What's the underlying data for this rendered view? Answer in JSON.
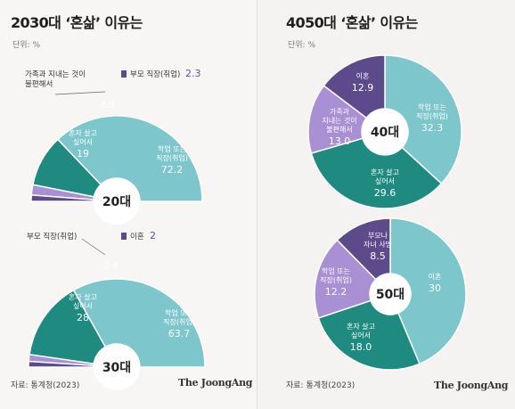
{
  "left": {
    "title": "2030대 ‘혼삶’ 이유는",
    "unit": "단위: %",
    "source": "자료: 통계청(2023)",
    "brand": "The JoongAng"
  },
  "right": {
    "title": "4050대 ‘혼삶’ 이유는",
    "unit": "단위: %",
    "source": "자료: 통계청(2023)",
    "brand": "The JoongAng"
  },
  "colors": {
    "light_teal": "#7cc6cc",
    "dark_teal": "#1e8a80",
    "lavender": "#a98fd4",
    "dark_purple": "#5c4a8a",
    "callout_value": "#6a4f9a"
  },
  "chart_data": [
    {
      "type": "pie",
      "layout": "semicircle",
      "center_label": "20대",
      "slices": [
        {
          "label": "학업 또는\n직장(취업)",
          "value": 72.2,
          "value_text": "72.2",
          "color": "#7cc6cc"
        },
        {
          "label": "혼자 살고\n싶어서",
          "value": 19,
          "value_text": "19",
          "color": "#1e8a80"
        },
        {
          "label": "가족과 지내는 것이\n불편해서",
          "value": 3.8,
          "value_text": "3.8",
          "color": "#a98fd4",
          "callout": true
        },
        {
          "label": "부모 직장(취업)",
          "value": 2.3,
          "value_text": "2.3",
          "color": "#5c4a8a",
          "callout": true
        }
      ]
    },
    {
      "type": "pie",
      "layout": "semicircle",
      "center_label": "30대",
      "slices": [
        {
          "label": "학업 또는\n직장(취업)",
          "value": 63.7,
          "value_text": "63.7",
          "color": "#7cc6cc"
        },
        {
          "label": "혼자 살고\n싶어서",
          "value": 28,
          "value_text": "28",
          "color": "#1e8a80"
        },
        {
          "label": "부모 직장(취업)",
          "value": 2.4,
          "value_text": "2.4",
          "color": "#a98fd4",
          "callout": true
        },
        {
          "label": "이혼",
          "value": 2,
          "value_text": "2",
          "color": "#5c4a8a",
          "callout": true
        }
      ]
    },
    {
      "type": "pie",
      "layout": "donut",
      "center_label": "40대",
      "slices": [
        {
          "label": "학업 또는\n직장(취업)",
          "value": 32.3,
          "value_text": "32.3",
          "color": "#7cc6cc"
        },
        {
          "label": "혼자 살고\n싶어서",
          "value": 29.6,
          "value_text": "29.6",
          "color": "#1e8a80"
        },
        {
          "label": "가족과\n지내는 것이\n불편해서",
          "value": 13.0,
          "value_text": "13.0",
          "color": "#a98fd4"
        },
        {
          "label": "이혼",
          "value": 12.9,
          "value_text": "12.9",
          "color": "#5c4a8a"
        }
      ]
    },
    {
      "type": "pie",
      "layout": "donut",
      "center_label": "50대",
      "slices": [
        {
          "label": "이혼",
          "value": 30,
          "value_text": "30",
          "color": "#7cc6cc"
        },
        {
          "label": "혼자 살고\n싶어서",
          "value": 18.0,
          "value_text": "18.0",
          "color": "#1e8a80"
        },
        {
          "label": "학업 또는\n직장(취업)",
          "value": 12.2,
          "value_text": "12.2",
          "color": "#a98fd4"
        },
        {
          "label": "부모나\n자녀 사망",
          "value": 8.5,
          "value_text": "8.5",
          "color": "#5c4a8a"
        }
      ]
    }
  ]
}
